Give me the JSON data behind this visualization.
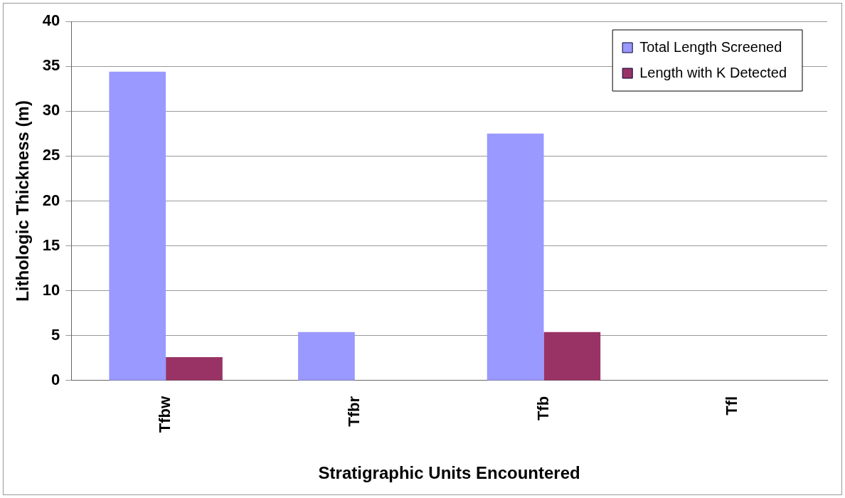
{
  "chart_data": {
    "type": "bar",
    "xlabel": "Stratigraphic Units Encountered",
    "ylabel": "Lithologic Thickness (m)",
    "categories": [
      "Tfbw",
      "Tfbr",
      "Tfb",
      "Tfl"
    ],
    "series": [
      {
        "name": "Total Length Screened",
        "color": "#9999ff",
        "values": [
          34.4,
          5.4,
          27.5,
          0
        ]
      },
      {
        "name": "Length with K Detected",
        "color": "#993366",
        "values": [
          2.6,
          0,
          5.4,
          0
        ]
      }
    ],
    "ylim": [
      0,
      40
    ],
    "yticks": [
      0,
      5,
      10,
      15,
      20,
      25,
      30,
      35,
      40
    ],
    "grid": "y",
    "legend": "top right"
  }
}
